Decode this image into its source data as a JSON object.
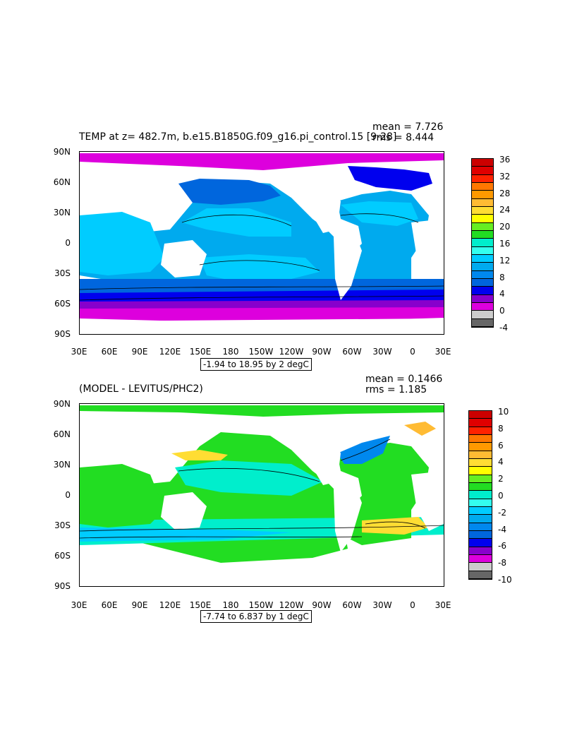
{
  "panel1": {
    "title": "TEMP at z= 482.7m, b.e15.B1850G.f09_g16.pi_control.15 [9-28]",
    "mean": "mean = 7.726",
    "rms": "rms = 8.444",
    "range_label": "-1.94 to 18.95 by 2 degC",
    "lat_labels": [
      "90N",
      "60N",
      "30N",
      "0",
      "30S",
      "60S",
      "90S"
    ],
    "lon_labels": [
      "30E",
      "60E",
      "90E",
      "120E",
      "150E",
      "180",
      "150W",
      "120W",
      "90W",
      "60W",
      "30W",
      "0",
      "30E"
    ],
    "colorbar_labels": [
      "36",
      "32",
      "28",
      "24",
      "20",
      "16",
      "12",
      "8",
      "4",
      "0",
      "-4"
    ],
    "colorbar_colors": [
      "#cc0000",
      "#e00000",
      "#ff2200",
      "#ff7700",
      "#ff9900",
      "#ffbb33",
      "#ffdd33",
      "#ffff00",
      "#66ee22",
      "#22dd22",
      "#00eecc",
      "#33ffee",
      "#00ccff",
      "#00aaee",
      "#0088ee",
      "#0066dd",
      "#0000ee",
      "#8800cc",
      "#dd00dd",
      "#cccccc",
      "#666666"
    ]
  },
  "panel2": {
    "title": "(MODEL - LEVITUS/PHC2)",
    "mean": "mean = 0.1466",
    "rms": "rms = 1.185",
    "range_label": "-7.74 to 6.837 by 1 degC",
    "lat_labels": [
      "90N",
      "60N",
      "30N",
      "0",
      "30S",
      "60S",
      "90S"
    ],
    "lon_labels": [
      "30E",
      "60E",
      "90E",
      "120E",
      "150E",
      "180",
      "150W",
      "120W",
      "90W",
      "60W",
      "30W",
      "0",
      "30E"
    ],
    "colorbar_labels": [
      "10",
      "8",
      "6",
      "4",
      "2",
      "0",
      "-2",
      "-4",
      "-6",
      "-8",
      "-10"
    ],
    "colorbar_colors": [
      "#cc0000",
      "#e00000",
      "#ff2200",
      "#ff7700",
      "#ff9900",
      "#ffbb33",
      "#ffdd33",
      "#ffff00",
      "#66ee22",
      "#22dd22",
      "#00eecc",
      "#33ffee",
      "#00ccff",
      "#00aaee",
      "#0088ee",
      "#0066dd",
      "#0000ee",
      "#8800cc",
      "#dd00dd",
      "#cccccc",
      "#666666"
    ]
  },
  "colors": {
    "land": "#ffffff",
    "arctic": "#dd00dd",
    "warm_ocean": "#00aaee",
    "deep_blue": "#0066dd",
    "diff_green": "#22dd22",
    "diff_cyan": "#00eecc"
  }
}
